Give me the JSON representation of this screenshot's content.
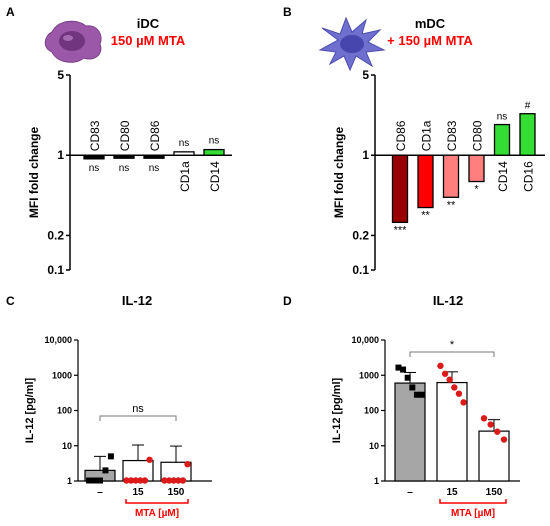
{
  "colors": {
    "treated_red": "#ff0000",
    "dark_red": "#990000",
    "light_red": "#ff7f7f",
    "green": "#33dd33",
    "grey_bar": "#a6a6a6",
    "idc_cell": "#9b58a8",
    "mdc_cell": "#6f6fd0",
    "points_control": "#000000",
    "points_treated": "#dd1a1a"
  },
  "icons": {
    "idc": "immature-dendritic-cell-icon",
    "mdc": "mature-dendritic-cell-icon"
  },
  "panels": {
    "A": {
      "label": "A",
      "title_line1": "iDC",
      "title_line2": "150 µM MTA"
    },
    "B": {
      "label": "B",
      "title_line1": "mDC",
      "title_line2": "+ 150 µM  MTA"
    },
    "C": {
      "label": "C",
      "title": "IL-12",
      "group_label": "MTA [µM]"
    },
    "D": {
      "label": "D",
      "title": "IL-12",
      "group_label": "MTA [µM]"
    }
  },
  "chart_data": [
    {
      "panel": "A",
      "type": "bar",
      "ylabel": "MFI fold change",
      "yscale": "log",
      "ylim": [
        0.1,
        5
      ],
      "yticks": [
        "0.1",
        "0.2",
        "1",
        "5"
      ],
      "ytick_values": [
        0.1,
        0.2,
        1,
        5
      ],
      "categories": [
        "CD83",
        "CD80",
        "CD86",
        "CD1a",
        "CD14"
      ],
      "values": [
        0.93,
        0.95,
        0.96,
        1.07,
        1.12
      ],
      "bar_colors": [
        "#000000",
        "#000000",
        "#000000",
        "#ffffff",
        "#33dd33"
      ],
      "significance": [
        "ns",
        "ns",
        "ns",
        "ns",
        "ns"
      ]
    },
    {
      "panel": "B",
      "type": "bar",
      "ylabel": "MFI fold change",
      "yscale": "log",
      "ylim": [
        0.1,
        5
      ],
      "yticks": [
        "0.1",
        "0.2",
        "1",
        "5"
      ],
      "ytick_values": [
        0.1,
        0.2,
        1,
        5
      ],
      "categories": [
        "CD86",
        "CD1a",
        "CD83",
        "CD80",
        "CD14",
        "CD16"
      ],
      "values": [
        0.26,
        0.35,
        0.43,
        0.59,
        1.85,
        2.3
      ],
      "bar_colors": [
        "#990000",
        "#ff0000",
        "#ff7f7f",
        "#ff7f7f",
        "#33dd33",
        "#33dd33"
      ],
      "significance": [
        "***",
        "**",
        "**",
        "*",
        "ns",
        "#"
      ]
    },
    {
      "panel": "C",
      "type": "bar",
      "ylabel": "IL-12 [pg/ml]",
      "yscale": "log",
      "ylim": [
        1,
        10000
      ],
      "yticks": [
        "1",
        "10",
        "100",
        "1000",
        "10,000"
      ],
      "ytick_values": [
        1,
        10,
        100,
        1000,
        10000
      ],
      "categories": [
        "–",
        "15",
        "150"
      ],
      "values": [
        2.0,
        3.8,
        3.4
      ],
      "errors_upper": [
        5.0,
        10.5,
        9.8
      ],
      "bar_colors": [
        "#a6a6a6",
        "#ffffff",
        "#ffffff"
      ],
      "points": [
        [
          1,
          1,
          1,
          2,
          5
        ],
        [
          1,
          1,
          1,
          1,
          1,
          4
        ],
        [
          1,
          1,
          1,
          1,
          1,
          3
        ]
      ],
      "point_colors": [
        "#000000",
        "#dd1a1a",
        "#dd1a1a"
      ],
      "comparison": {
        "from": 0,
        "to": 2,
        "label": "ns"
      }
    },
    {
      "panel": "D",
      "type": "bar",
      "ylabel": "IL-12 [pg/ml]",
      "yscale": "log",
      "ylim": [
        1,
        10000
      ],
      "yticks": [
        "1",
        "10",
        "100",
        "1000",
        "10,000"
      ],
      "ytick_values": [
        1,
        10,
        100,
        1000,
        10000
      ],
      "categories": [
        "–",
        "15",
        "150"
      ],
      "values": [
        600,
        620,
        26
      ],
      "errors_upper": [
        1200,
        1250,
        55
      ],
      "errors_lower": [
        250,
        240,
        15
      ],
      "bar_colors": [
        "#a6a6a6",
        "#ffffff",
        "#ffffff"
      ],
      "points": [
        [
          1650,
          1450,
          850,
          450,
          280,
          280
        ],
        [
          1850,
          1100,
          750,
          450,
          300,
          170
        ],
        [
          60,
          40,
          25,
          15
        ]
      ],
      "point_colors": [
        "#000000",
        "#dd1a1a",
        "#dd1a1a"
      ],
      "comparison": {
        "from": 0,
        "to": 2,
        "label": "*"
      }
    }
  ]
}
